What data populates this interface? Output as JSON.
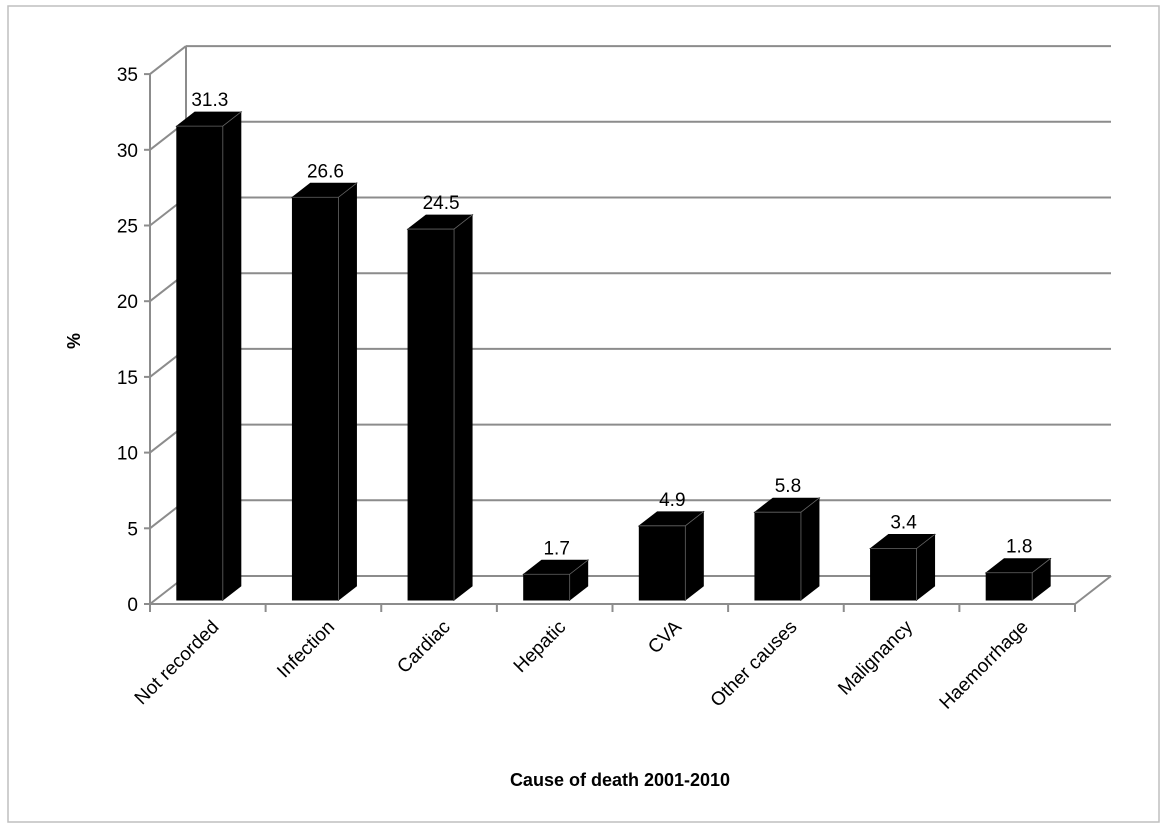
{
  "chart_data": {
    "type": "bar",
    "title": "",
    "xlabel": "Cause of death 2001-2010",
    "ylabel": "%",
    "categories": [
      "Not recorded",
      "Infection",
      "Cardiac",
      "Hepatic",
      "CVA",
      "Other causes",
      "Malignancy",
      "Haemorrhage"
    ],
    "values": [
      31.3,
      26.6,
      24.5,
      1.7,
      4.9,
      5.8,
      3.4,
      1.8
    ],
    "data_labels": [
      "31.3",
      "26.6",
      "24.5",
      "1.7",
      "4.9",
      "5.8",
      "3.4",
      "1.8"
    ],
    "yticks": [
      0,
      5,
      10,
      15,
      20,
      25,
      30,
      35
    ],
    "ylim": [
      0,
      35
    ],
    "grid": true,
    "legend": "none",
    "style": "3d-column",
    "colors": {
      "bar": "#000000",
      "grid": "#8c8c8c",
      "frame": "#bfbfbf",
      "text": "#000000"
    }
  }
}
